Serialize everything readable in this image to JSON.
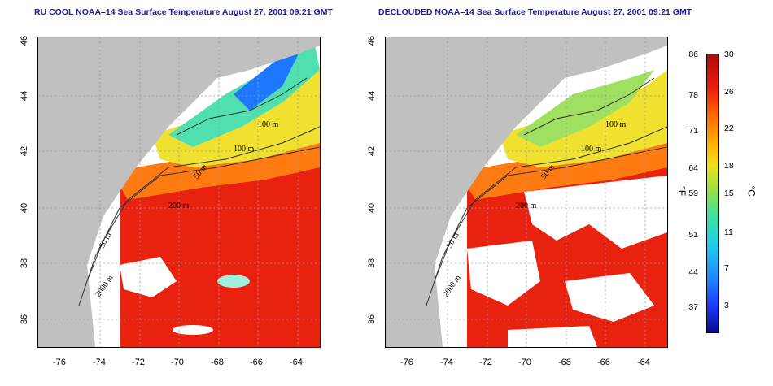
{
  "panels": [
    {
      "title": "RU COOL NOAA–14 Sea Surface Temperature August 27, 2001 09:21 GMT",
      "cloudy": true
    },
    {
      "title": "DECLOUDED NOAA–14 Sea Surface Temperature August 27, 2001 09:21 GMT",
      "cloudy": false
    }
  ],
  "y_ticks": [
    "46",
    "44",
    "42",
    "40",
    "38",
    "36"
  ],
  "x_ticks": [
    "-76",
    "-74",
    "-72",
    "-70",
    "-68",
    "-66",
    "-64"
  ],
  "contour_labels": [
    "100 m",
    "100 m",
    "50 m",
    "200 m",
    "50 m",
    "2000 m"
  ],
  "colorbar": {
    "fahrenheit_ticks": [
      "86",
      "78",
      "71",
      "64",
      "59",
      "51",
      "44",
      "37"
    ],
    "celsius_ticks": [
      "30",
      "26",
      "22",
      "18",
      "15",
      "11",
      "7",
      "3"
    ],
    "unit_f": "°F",
    "unit_c": "°C"
  },
  "colors": {
    "land": "#c0c0c0",
    "title": "#1a1ab0",
    "warm": "#e8220f",
    "cool": "#30e0c0"
  }
}
